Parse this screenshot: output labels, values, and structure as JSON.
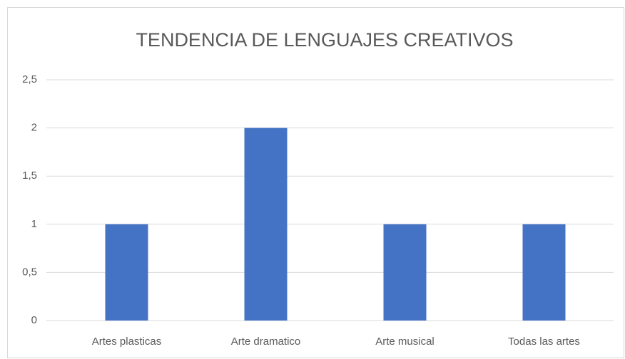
{
  "chart_data": {
    "type": "bar",
    "title": "TENDENCIA DE LENGUAJES CREATIVOS",
    "categories": [
      "Artes plasticas",
      "Arte dramatico",
      "Arte musical",
      "Todas las artes"
    ],
    "values": [
      1,
      2,
      1,
      1
    ],
    "color": "#4472c4",
    "ylim": [
      0,
      2.5
    ],
    "yticks": [
      0,
      {
        "value": 0.5,
        "label": "0,5"
      },
      1,
      {
        "value": 1.5,
        "label": "1,5"
      },
      2,
      {
        "value": 2.5,
        "label": "2,5"
      }
    ],
    "grid": true
  }
}
